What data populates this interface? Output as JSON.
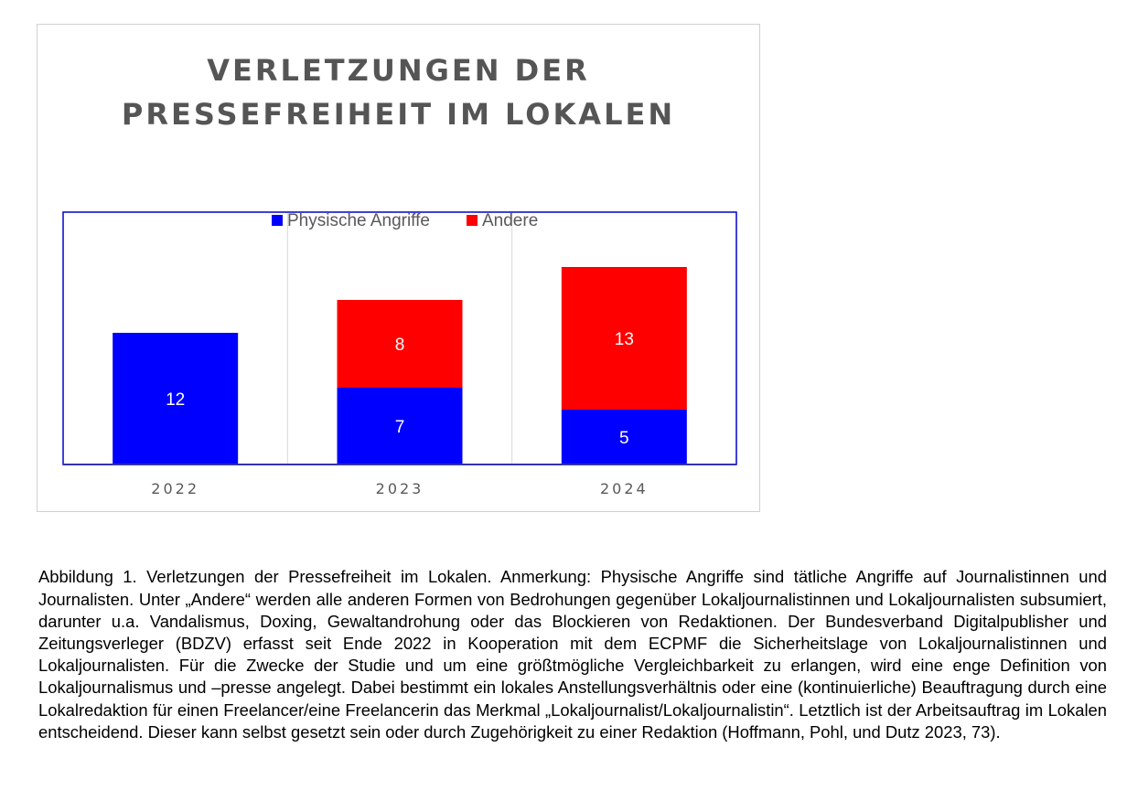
{
  "chart_data": {
    "type": "bar",
    "stacked": true,
    "title_lines": [
      "VERLETZUNGEN DER",
      "PRESSEFREIHEIT IM LOKALEN"
    ],
    "categories": [
      "2022",
      "2023",
      "2024"
    ],
    "series": [
      {
        "name": "Physische Angriffe",
        "color": "#0000ff",
        "values": [
          12,
          7,
          5
        ]
      },
      {
        "name": "Andere",
        "color": "#ff0000",
        "values": [
          0,
          8,
          13
        ]
      }
    ],
    "data_labels": [
      [
        "12",
        "7",
        "5"
      ],
      [
        "",
        "8",
        "13"
      ]
    ],
    "ylim": [
      0,
      20
    ],
    "grid": "vertical",
    "legend_position": "top-center"
  },
  "caption": "Abbildung 1. Verletzungen der Pressefreiheit im Lokalen. Anmerkung: Physische Angriffe sind tätliche Angriffe auf Journalistinnen und Journalisten. Unter „Andere“ werden alle anderen Formen von Bedrohungen gegenüber Lokaljournalistinnen und Lokaljournalisten subsumiert, darunter u.a. Vandalismus, Doxing, Gewaltandrohung oder das Blockieren von Redaktionen. Der Bundesverband Digitalpublisher und Zeitungsverleger (BDZV) erfasst seit Ende 2022 in Kooperation mit dem ECPMF die Sicherheitslage von Lokaljournalistinnen und Lokaljournalisten. Für die Zwecke der Studie und um eine größtmögliche Vergleichbarkeit zu erlangen, wird eine enge Definition von Lokaljournalismus und –presse angelegt. Dabei bestimmt ein lokales Anstellungsverhältnis oder eine (kontinuierliche) Beauftragung durch eine Lokalredaktion für einen Freelancer/eine Freelancerin das Merkmal „Lokaljournalist/Lokaljournalistin“. Letztlich ist der Arbeitsauftrag im Lokalen entscheidend. Dieser kann selbst gesetzt sein oder durch Zugehörigkeit zu einer Redaktion (Hoffmann, Pohl, und Dutz 2023, 73)."
}
